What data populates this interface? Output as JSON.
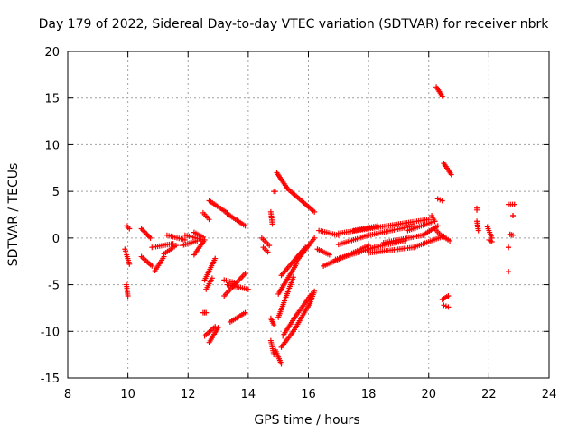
{
  "chart_data": {
    "type": "scatter",
    "title": "Day 179 of 2022, Sidereal Day-to-day VTEC variation (SDTVAR) for receiver nbrk",
    "xlabel": "GPS time / hours",
    "ylabel": "SDTVAR / TECUs",
    "xlim": [
      8,
      24
    ],
    "ylim": [
      -15,
      20
    ],
    "xticks": [
      8,
      10,
      12,
      14,
      16,
      18,
      20,
      22,
      24
    ],
    "yticks": [
      -15,
      -10,
      -5,
      0,
      5,
      10,
      15,
      20
    ],
    "grid": true,
    "marker": "+",
    "color": "#ff0000",
    "series": [
      {
        "tracks": [
          {
            "from": [
              9.95,
              1.3
            ],
            "to": [
              10.05,
              1.0
            ]
          },
          {
            "from": [
              9.9,
              -1.2
            ],
            "to": [
              10.05,
              -2.8
            ]
          },
          {
            "from": [
              9.95,
              -5.0
            ],
            "to": [
              10.0,
              -6.2
            ]
          },
          {
            "from": [
              10.45,
              1.0
            ],
            "to": [
              10.75,
              0.0
            ]
          },
          {
            "from": [
              10.45,
              -2.0
            ],
            "to": [
              10.8,
              -3.0
            ]
          },
          {
            "from": [
              10.8,
              -1.0
            ],
            "to": [
              11.5,
              -0.6
            ]
          },
          {
            "from": [
              10.9,
              -3.5
            ],
            "to": [
              11.2,
              -2.0
            ]
          },
          {
            "from": [
              11.2,
              -1.7
            ],
            "to": [
              11.6,
              -0.8
            ]
          },
          {
            "from": [
              11.3,
              0.3
            ],
            "to": [
              11.9,
              -0.2
            ]
          },
          {
            "from": [
              11.8,
              -0.8
            ],
            "to": [
              12.3,
              -0.3
            ]
          },
          {
            "from": [
              11.9,
              0.3
            ],
            "to": [
              12.5,
              -0.2
            ]
          },
          {
            "from": [
              12.2,
              -1.8
            ],
            "to": [
              12.55,
              -0.2
            ]
          },
          {
            "from": [
              12.2,
              0.6
            ],
            "to": [
              12.5,
              0.1
            ]
          },
          {
            "from": [
              12.5,
              2.7
            ],
            "to": [
              12.7,
              2.0
            ]
          },
          {
            "from": [
              12.7,
              4.0
            ],
            "to": [
              13.3,
              2.7
            ]
          },
          {
            "from": [
              13.3,
              2.6
            ],
            "to": [
              13.9,
              1.3
            ]
          },
          {
            "from": [
              12.55,
              -4.5
            ],
            "to": [
              12.9,
              -2.2
            ]
          },
          {
            "from": [
              12.6,
              -5.5
            ],
            "to": [
              12.8,
              -4.3
            ]
          },
          {
            "from": [
              12.5,
              -8.0
            ],
            "to": [
              12.6,
              -8.0
            ]
          },
          {
            "from": [
              12.55,
              -10.5
            ],
            "to": [
              12.9,
              -9.5
            ]
          },
          {
            "from": [
              12.7,
              -11.2
            ],
            "to": [
              13.0,
              -9.6
            ]
          },
          {
            "from": [
              13.2,
              -6.2
            ],
            "to": [
              13.9,
              -3.8
            ]
          },
          {
            "from": [
              13.3,
              -5.0
            ],
            "to": [
              14.0,
              -5.5
            ]
          },
          {
            "from": [
              13.4,
              -9.0
            ],
            "to": [
              13.9,
              -8.0
            ]
          },
          {
            "from": [
              13.2,
              -4.5
            ],
            "to": [
              13.6,
              -4.8
            ]
          },
          {
            "from": [
              14.45,
              0.0
            ],
            "to": [
              14.7,
              -0.8
            ]
          },
          {
            "from": [
              14.5,
              -1.0
            ],
            "to": [
              14.65,
              -1.5
            ]
          },
          {
            "from": [
              14.75,
              2.8
            ],
            "to": [
              14.8,
              1.5
            ]
          },
          {
            "from": [
              14.85,
              5.0
            ],
            "to": [
              14.9,
              5.0
            ]
          },
          {
            "from": [
              14.95,
              7.0
            ],
            "to": [
              15.3,
              5.3
            ]
          },
          {
            "from": [
              15.3,
              5.3
            ],
            "to": [
              16.2,
              2.8
            ]
          },
          {
            "from": [
              14.75,
              -8.6
            ],
            "to": [
              14.85,
              -9.3
            ]
          },
          {
            "from": [
              14.75,
              -11.0
            ],
            "to": [
              14.85,
              -12.5
            ]
          },
          {
            "from": [
              14.9,
              -12.0
            ],
            "to": [
              15.1,
              -13.5
            ]
          },
          {
            "from": [
              15.0,
              -8.5
            ],
            "to": [
              15.5,
              -4.2
            ]
          },
          {
            "from": [
              15.0,
              -6.0
            ],
            "to": [
              15.6,
              -2.8
            ]
          },
          {
            "from": [
              15.1,
              -4.0
            ],
            "to": [
              15.9,
              -1.0
            ]
          },
          {
            "from": [
              15.6,
              -2.5
            ],
            "to": [
              16.2,
              0.0
            ]
          },
          {
            "from": [
              15.1,
              -11.7
            ],
            "to": [
              15.5,
              -10.0
            ]
          },
          {
            "from": [
              15.5,
              -10.0
            ],
            "to": [
              16.05,
              -7.0
            ]
          },
          {
            "from": [
              16.05,
              -7.0
            ],
            "to": [
              16.2,
              -5.7
            ]
          },
          {
            "from": [
              15.15,
              -10.5
            ],
            "to": [
              15.55,
              -8.5
            ]
          },
          {
            "from": [
              15.55,
              -8.5
            ],
            "to": [
              16.1,
              -6.0
            ]
          },
          {
            "from": [
              16.3,
              -1.2
            ],
            "to": [
              16.7,
              -1.8
            ]
          },
          {
            "from": [
              16.35,
              0.8
            ],
            "to": [
              17.0,
              0.3
            ]
          },
          {
            "from": [
              16.5,
              -3.0
            ],
            "to": [
              17.2,
              -2.0
            ]
          },
          {
            "from": [
              17.2,
              -2.0
            ],
            "to": [
              18.0,
              -0.8
            ]
          },
          {
            "from": [
              17.0,
              0.5
            ],
            "to": [
              18.0,
              1.0
            ]
          },
          {
            "from": [
              18.0,
              1.0
            ],
            "to": [
              19.0,
              1.5
            ]
          },
          {
            "from": [
              17.0,
              -0.7
            ],
            "to": [
              18.0,
              0.3
            ]
          },
          {
            "from": [
              18.0,
              0.3
            ],
            "to": [
              19.5,
              1.3
            ]
          },
          {
            "from": [
              17.5,
              0.8
            ],
            "to": [
              18.3,
              1.3
            ]
          },
          {
            "from": [
              16.9,
              -2.3
            ],
            "to": [
              18.2,
              -1.0
            ]
          },
          {
            "from": [
              18.2,
              -1.0
            ],
            "to": [
              19.2,
              -0.3
            ]
          },
          {
            "from": [
              18.0,
              -1.6
            ],
            "to": [
              19.5,
              -1.0
            ]
          },
          {
            "from": [
              19.5,
              -1.0
            ],
            "to": [
              20.5,
              0.2
            ]
          },
          {
            "from": [
              18.5,
              -0.5
            ],
            "to": [
              19.8,
              0.3
            ]
          },
          {
            "from": [
              19.8,
              0.3
            ],
            "to": [
              20.3,
              1.3
            ]
          },
          {
            "from": [
              19.0,
              1.5
            ],
            "to": [
              20.0,
              2.0
            ]
          },
          {
            "from": [
              19.3,
              0.8
            ],
            "to": [
              20.2,
              1.8
            ]
          },
          {
            "from": [
              20.1,
              2.4
            ],
            "to": [
              20.2,
              1.8
            ]
          },
          {
            "from": [
              20.2,
              1.0
            ],
            "to": [
              20.4,
              0.3
            ]
          },
          {
            "from": [
              20.4,
              0.3
            ],
            "to": [
              20.7,
              -0.3
            ]
          },
          {
            "from": [
              20.25,
              16.2
            ],
            "to": [
              20.45,
              15.2
            ]
          },
          {
            "from": [
              20.3,
              4.2
            ],
            "to": [
              20.45,
              4.0
            ]
          },
          {
            "from": [
              20.5,
              8.0
            ],
            "to": [
              20.75,
              6.8
            ]
          },
          {
            "from": [
              20.45,
              -6.6
            ],
            "to": [
              20.65,
              -6.2
            ]
          },
          {
            "from": [
              20.5,
              -7.2
            ],
            "to": [
              20.65,
              -7.4
            ]
          },
          {
            "from": [
              21.6,
              3.2
            ],
            "to": [
              21.6,
              3.0
            ]
          },
          {
            "from": [
              21.6,
              1.8
            ],
            "to": [
              21.65,
              0.8
            ]
          },
          {
            "from": [
              21.95,
              1.2
            ],
            "to": [
              22.1,
              0.0
            ]
          },
          {
            "from": [
              22.0,
              -0.2
            ],
            "to": [
              22.1,
              -0.4
            ]
          },
          {
            "from": [
              22.65,
              3.6
            ],
            "to": [
              22.85,
              3.6
            ]
          },
          {
            "from": [
              22.8,
              2.4
            ],
            "to": [
              22.8,
              2.4
            ]
          },
          {
            "from": [
              22.7,
              0.4
            ],
            "to": [
              22.8,
              0.3
            ]
          },
          {
            "from": [
              22.65,
              -1.0
            ],
            "to": [
              22.65,
              -1.0
            ]
          },
          {
            "from": [
              22.65,
              -3.6
            ],
            "to": [
              22.65,
              -3.6
            ]
          }
        ]
      }
    ]
  }
}
